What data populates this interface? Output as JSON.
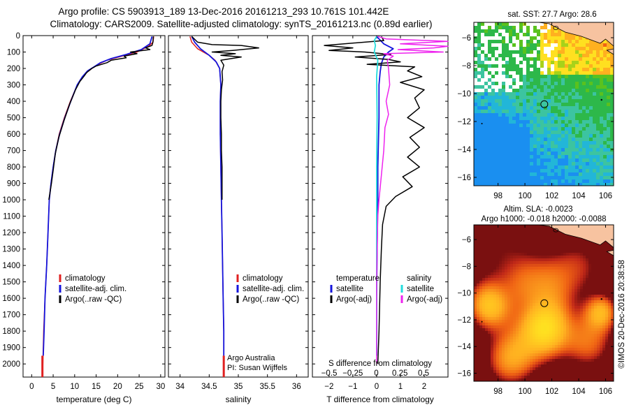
{
  "header": {
    "line1": "Argo profile: CS 5903913_189 13-Dec-2016 20161213_293 10.761S 101.442E",
    "line2": "Climatology: CARS2009. Satellite-adjusted climatology: synTS_20161213.nc (0.89d earlier)"
  },
  "side_text": "©IMOS 20-Dec-2016 20:38:58",
  "colors": {
    "climatology": "#e02020",
    "satellite": "#1414dc",
    "argo": "#000000",
    "s_satellite": "#22dddd",
    "s_argo": "#ee22ee",
    "land": "#f7c3a0"
  },
  "chart_data": [
    {
      "type": "line",
      "xlabel": "temperature (deg C)",
      "ylabel": "",
      "xlim": [
        -2,
        31
      ],
      "ylim": [
        2080,
        0
      ],
      "y_inverted": true,
      "xticks": [
        0,
        5,
        10,
        15,
        20,
        25,
        30
      ],
      "yticks": [
        0,
        100,
        200,
        300,
        400,
        500,
        600,
        700,
        800,
        900,
        1000,
        1100,
        1200,
        1300,
        1400,
        1500,
        1600,
        1700,
        1800,
        1900,
        2000
      ],
      "legend": {
        "position": "lower-center",
        "entries": [
          "climatology",
          "satellite-adj. clim.",
          "Argo(..raw -QC)"
        ]
      },
      "series": [
        {
          "name": "climatology",
          "color": "#e02020",
          "points": [
            [
              28.4,
              5
            ],
            [
              28.2,
              40
            ],
            [
              27.2,
              65
            ],
            [
              24.5,
              100
            ],
            [
              21.0,
              125
            ],
            [
              17.5,
              150
            ],
            [
              15.5,
              175
            ],
            [
              14.0,
              200
            ],
            [
              12.5,
              230
            ],
            [
              11.3,
              270
            ],
            [
              10.3,
              320
            ],
            [
              9.0,
              400
            ],
            [
              7.6,
              500
            ],
            [
              6.4,
              600
            ],
            [
              5.6,
              700
            ],
            [
              5.0,
              800
            ],
            [
              4.5,
              900
            ],
            [
              4.1,
              1000
            ],
            [
              3.8,
              1200
            ],
            [
              3.5,
              1400
            ],
            [
              3.1,
              1600
            ],
            [
              2.8,
              1800
            ],
            [
              2.6,
              2000
            ],
            [
              2.5,
              2080
            ]
          ]
        },
        {
          "name": "satellite-adj. clim.",
          "color": "#1414dc",
          "points": [
            [
              28.0,
              5
            ],
            [
              27.5,
              50
            ],
            [
              25.5,
              85
            ],
            [
              22.0,
              115
            ],
            [
              18.5,
              140
            ],
            [
              16.0,
              165
            ],
            [
              14.5,
              190
            ],
            [
              13.0,
              215
            ],
            [
              11.8,
              250
            ],
            [
              10.6,
              300
            ],
            [
              9.1,
              400
            ],
            [
              7.7,
              500
            ],
            [
              6.5,
              600
            ],
            [
              5.6,
              700
            ],
            [
              5.0,
              800
            ],
            [
              4.5,
              900
            ],
            [
              4.1,
              1000
            ],
            [
              3.8,
              1200
            ],
            [
              3.5,
              1400
            ],
            [
              3.1,
              1600
            ],
            [
              2.9,
              1800
            ],
            [
              2.7,
              1950
            ]
          ]
        },
        {
          "name": "Argo(..raw -QC)",
          "color": "#000000",
          "points": [
            [
              28.3,
              5
            ],
            [
              28.2,
              40
            ],
            [
              28.0,
              60
            ],
            [
              26.5,
              75
            ],
            [
              27.5,
              85
            ],
            [
              23.0,
              100
            ],
            [
              24.5,
              110
            ],
            [
              21.5,
              125
            ],
            [
              22.0,
              135
            ],
            [
              18.5,
              150
            ],
            [
              17.5,
              165
            ],
            [
              15.0,
              185
            ],
            [
              14.0,
              200
            ],
            [
              12.8,
              225
            ],
            [
              12.1,
              250
            ],
            [
              11.2,
              280
            ],
            [
              10.2,
              330
            ],
            [
              8.8,
              420
            ],
            [
              7.5,
              520
            ],
            [
              6.3,
              620
            ],
            [
              5.5,
              720
            ],
            [
              5.0,
              820
            ],
            [
              4.6,
              900
            ],
            [
              4.3,
              950
            ],
            [
              4.0,
              1000
            ]
          ]
        }
      ]
    },
    {
      "type": "line",
      "xlabel": "salinity",
      "ylabel": "",
      "xlim": [
        33.8,
        36.2
      ],
      "ylim": [
        2080,
        0
      ],
      "y_inverted": true,
      "xticks": [
        34,
        34.5,
        35,
        35.5,
        36
      ],
      "legend": {
        "position": "lower-center",
        "entries": [
          "climatology",
          "satellite-adj. clim.",
          "Argo(..raw -QC)"
        ]
      },
      "annotation": [
        "Argo Australia",
        "PI: Susan Wijffels"
      ],
      "series": [
        {
          "name": "climatology",
          "color": "#e02020",
          "points": [
            [
              34.17,
              5
            ],
            [
              34.2,
              40
            ],
            [
              34.3,
              80
            ],
            [
              34.5,
              120
            ],
            [
              34.6,
              150
            ],
            [
              34.68,
              200
            ],
            [
              34.7,
              300
            ],
            [
              34.69,
              400
            ],
            [
              34.69,
              600
            ],
            [
              34.7,
              800
            ],
            [
              34.71,
              1000
            ],
            [
              34.72,
              1200
            ],
            [
              34.73,
              1400
            ],
            [
              34.74,
              1600
            ],
            [
              34.75,
              1800
            ],
            [
              34.75,
              2000
            ],
            [
              34.75,
              2080
            ]
          ]
        },
        {
          "name": "satellite-adj. clim.",
          "color": "#1414dc",
          "points": [
            [
              34.2,
              5
            ],
            [
              34.25,
              40
            ],
            [
              34.35,
              80
            ],
            [
              34.5,
              120
            ],
            [
              34.62,
              160
            ],
            [
              34.68,
              200
            ],
            [
              34.7,
              300
            ],
            [
              34.69,
              400
            ],
            [
              34.69,
              600
            ],
            [
              34.7,
              800
            ],
            [
              34.71,
              1000
            ],
            [
              34.72,
              1200
            ],
            [
              34.73,
              1400
            ],
            [
              34.74,
              1600
            ],
            [
              34.75,
              1800
            ],
            [
              34.75,
              1950
            ]
          ]
        },
        {
          "name": "Argo(..raw -QC)",
          "color": "#000000",
          "points": [
            [
              34.2,
              5
            ],
            [
              34.3,
              40
            ],
            [
              34.55,
              55
            ],
            [
              35.05,
              60
            ],
            [
              35.35,
              75
            ],
            [
              34.9,
              90
            ],
            [
              34.55,
              100
            ],
            [
              34.95,
              110
            ],
            [
              34.7,
              120
            ],
            [
              35.05,
              130
            ],
            [
              34.7,
              150
            ],
            [
              34.75,
              180
            ],
            [
              34.72,
              220
            ],
            [
              34.73,
              270
            ],
            [
              34.71,
              330
            ],
            [
              34.7,
              400
            ],
            [
              34.7,
              500
            ],
            [
              34.71,
              600
            ],
            [
              34.71,
              700
            ],
            [
              34.72,
              800
            ],
            [
              34.72,
              900
            ],
            [
              34.72,
              1000
            ]
          ]
        }
      ]
    },
    {
      "type": "line",
      "xlabel": "T difference from climatology",
      "title_bottom": "S difference from climatology",
      "xlim": [
        -2.7,
        3.0
      ],
      "ylim": [
        2080,
        0
      ],
      "y_inverted": true,
      "xticks": [
        -2,
        -1,
        0,
        1,
        2
      ],
      "sxticks": [
        -0.5,
        -0.25,
        0,
        0.25,
        0.5
      ],
      "sxtick_labels": [
        "-0.5",
        "-0.25",
        "0",
        "0.25",
        "0.5"
      ],
      "legend": {
        "position": "lower-center",
        "entries": [
          "temperature",
          "satellite",
          "Argo(-adj)",
          "salinity",
          "satellite",
          "Argo(-adj)"
        ]
      },
      "series": [
        {
          "name": "satellite",
          "color": "#1414dc",
          "points": [
            [
              0.0,
              5
            ],
            [
              0.1,
              20
            ],
            [
              0.3,
              50
            ],
            [
              0.7,
              80
            ],
            [
              0.5,
              100
            ],
            [
              0.3,
              130
            ],
            [
              0.2,
              170
            ],
            [
              0.15,
              220
            ],
            [
              0.1,
              300
            ],
            [
              0.1,
              500
            ],
            [
              0.05,
              800
            ],
            [
              0.05,
              1000
            ],
            [
              0.02,
              1300
            ],
            [
              0.0,
              1600
            ],
            [
              0.0,
              1800
            ],
            [
              0.0,
              1950
            ]
          ]
        },
        {
          "name": "Argo(-adj)",
          "color": "#000000",
          "points": [
            [
              0.2,
              5
            ],
            [
              0.3,
              30
            ],
            [
              -2.2,
              60
            ],
            [
              -1.0,
              75
            ],
            [
              -2.0,
              90
            ],
            [
              -0.5,
              100
            ],
            [
              0.6,
              115
            ],
            [
              -0.9,
              130
            ],
            [
              0.5,
              145
            ],
            [
              1.0,
              160
            ],
            [
              -0.4,
              175
            ],
            [
              1.6,
              190
            ],
            [
              1.3,
              215
            ],
            [
              1.9,
              250
            ],
            [
              1.0,
              285
            ],
            [
              2.0,
              330
            ],
            [
              1.6,
              380
            ],
            [
              1.8,
              440
            ],
            [
              1.3,
              500
            ],
            [
              2.0,
              560
            ],
            [
              1.4,
              620
            ],
            [
              1.8,
              680
            ],
            [
              1.3,
              740
            ],
            [
              1.8,
              800
            ],
            [
              1.1,
              860
            ],
            [
              1.5,
              920
            ],
            [
              0.8,
              980
            ],
            [
              0.4,
              1040
            ],
            [
              0.25,
              1150
            ],
            [
              0.2,
              1300
            ],
            [
              0.15,
              1500
            ],
            [
              0.1,
              1800
            ],
            [
              0.05,
              2000
            ]
          ]
        },
        {
          "name": "satellite",
          "color": "#22dddd",
          "points": [
            [
              0.0,
              5
            ],
            [
              -0.1,
              30
            ],
            [
              -0.05,
              60
            ],
            [
              -0.1,
              100
            ],
            [
              0.05,
              150
            ],
            [
              0.0,
              250
            ],
            [
              0.02,
              500
            ],
            [
              0.0,
              800
            ],
            [
              0.0,
              1100
            ],
            [
              0.0,
              1500
            ],
            [
              0.0,
              1950
            ]
          ]
        },
        {
          "name": "Argo(-adj)",
          "color": "#ee22ee",
          "points": [
            [
              0.05,
              5
            ],
            [
              0.4,
              20
            ],
            [
              3.0,
              35
            ],
            [
              1.0,
              50
            ],
            [
              3.0,
              65
            ],
            [
              2.4,
              75
            ],
            [
              0.9,
              85
            ],
            [
              2.8,
              100
            ],
            [
              0.3,
              110
            ],
            [
              0.7,
              125
            ],
            [
              0.45,
              150
            ],
            [
              0.5,
              200
            ],
            [
              0.55,
              300
            ],
            [
              0.4,
              400
            ],
            [
              0.5,
              480
            ],
            [
              0.35,
              560
            ],
            [
              0.3,
              700
            ],
            [
              0.2,
              850
            ],
            [
              0.1,
              1000
            ],
            [
              0.05,
              1100
            ],
            [
              0.02,
              1300
            ],
            [
              0.0,
              1500
            ],
            [
              0.0,
              1800
            ],
            [
              0.0,
              2000
            ]
          ]
        }
      ]
    },
    {
      "type": "heatmap",
      "title": "sat. SST: 27.7 Argo: 28.6",
      "xlim": [
        96.2,
        106.6
      ],
      "ylim": [
        -16.6,
        -4.9
      ],
      "xticks": [
        98,
        100,
        102,
        104,
        106
      ],
      "yticks": [
        -6,
        -8,
        -10,
        -12,
        -14,
        -16
      ],
      "marker": [
        101.442,
        -10.761
      ]
    },
    {
      "type": "heatmap",
      "title": "Altim. SLA: -0.0023",
      "subtitle": "Argo h1000: -0.018 h2000: -0.0088",
      "xlim": [
        96.2,
        106.6
      ],
      "ylim": [
        -16.6,
        -4.9
      ],
      "xticks": [
        98,
        100,
        102,
        104,
        106
      ],
      "yticks": [
        -6,
        -8,
        -10,
        -12,
        -14,
        -16
      ],
      "marker": [
        101.442,
        -10.761
      ]
    }
  ]
}
